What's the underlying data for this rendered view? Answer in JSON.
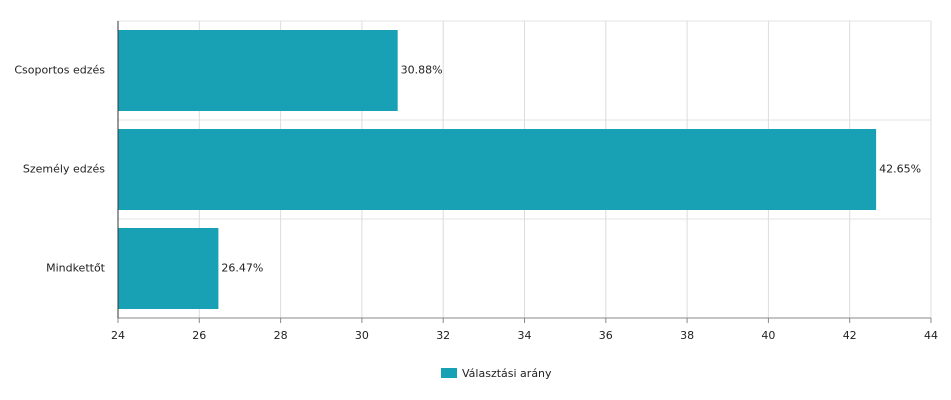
{
  "chart_data": {
    "type": "hbar",
    "categories": [
      "Csoportos edzés",
      "Személy edzés",
      "Mindkettőt"
    ],
    "series": [
      {
        "name": "Választási arány",
        "color": "#18a1b5",
        "values": [
          30.88,
          42.65,
          26.47
        ],
        "value_labels": [
          "30.88%",
          "42.65%",
          "26.47%"
        ]
      }
    ],
    "xlim": [
      24,
      44
    ],
    "xticks": [
      24,
      26,
      28,
      30,
      32,
      34,
      36,
      38,
      40,
      42,
      44
    ],
    "grid": true,
    "legend": "bottom"
  }
}
